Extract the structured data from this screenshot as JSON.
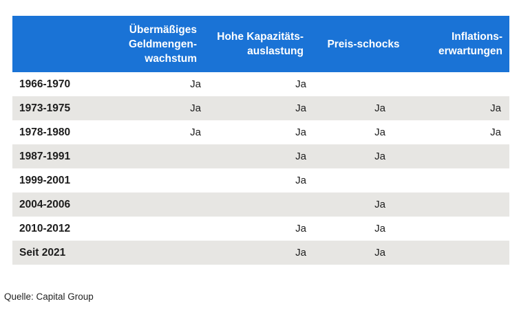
{
  "table": {
    "headers": {
      "money_growth": [
        "Übermäßiges",
        "Geldmengen-",
        "wachstum"
      ],
      "capacity": [
        "Hohe Kapazitäts-",
        "auslastung"
      ],
      "price_shocks": [
        "Preis-schocks"
      ],
      "inflation_expectations": [
        "Inflations-",
        "erwartungen"
      ]
    },
    "rows": [
      {
        "period": "1966-1970",
        "money_growth": "Ja",
        "capacity": "Ja",
        "price_shocks": "",
        "inflation_expectations": ""
      },
      {
        "period": "1973-1975",
        "money_growth": "Ja",
        "capacity": "Ja",
        "price_shocks": "Ja",
        "inflation_expectations": "Ja"
      },
      {
        "period": "1978-1980",
        "money_growth": "Ja",
        "capacity": "Ja",
        "price_shocks": "Ja",
        "inflation_expectations": "Ja"
      },
      {
        "period": "1987-1991",
        "money_growth": "",
        "capacity": "Ja",
        "price_shocks": "Ja",
        "inflation_expectations": ""
      },
      {
        "period": "1999-2001",
        "money_growth": "",
        "capacity": "Ja",
        "price_shocks": "",
        "inflation_expectations": ""
      },
      {
        "period": "2004-2006",
        "money_growth": "",
        "capacity": "",
        "price_shocks": "Ja",
        "inflation_expectations": ""
      },
      {
        "period": "2010-2012",
        "money_growth": "",
        "capacity": "Ja",
        "price_shocks": "Ja",
        "inflation_expectations": ""
      },
      {
        "period": "Seit 2021",
        "money_growth": "",
        "capacity": "Ja",
        "price_shocks": "Ja",
        "inflation_expectations": ""
      }
    ]
  },
  "source": "Quelle: Capital Group",
  "colors": {
    "header_bg": "#1a73d6",
    "row_shade": "#e7e6e3"
  }
}
